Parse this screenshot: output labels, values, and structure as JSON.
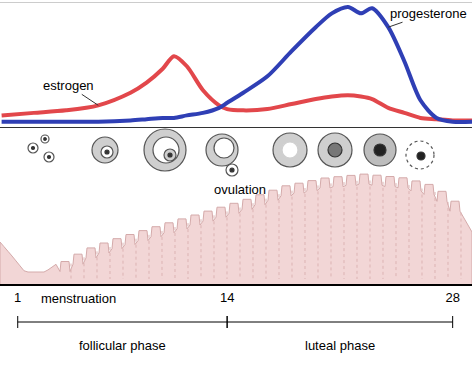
{
  "chart_data": {
    "type": "line",
    "x": [
      0,
      2,
      4,
      6,
      8,
      9,
      10,
      10.7,
      11.5,
      12.5,
      13.5,
      14,
      15,
      16.5,
      18,
      19.5,
      20.5,
      21.5,
      22.3,
      23,
      24,
      25,
      26,
      27,
      28,
      29.2
    ],
    "series": [
      {
        "name": "estrogen",
        "color": "#e2474b",
        "values": [
          10,
          12,
          14,
          18,
          28,
          36,
          47,
          57,
          49,
          30,
          18,
          15,
          14,
          15,
          19,
          23,
          25,
          26,
          25,
          23,
          16,
          12,
          8,
          7,
          6,
          6
        ]
      },
      {
        "name": "progesterone",
        "color": "#2f3fb5",
        "values": [
          5,
          5,
          5,
          5,
          6,
          7,
          8,
          8,
          10,
          12,
          16,
          20,
          28,
          41,
          61,
          80,
          91,
          96,
          91,
          95,
          80,
          53,
          22,
          8,
          5,
          5
        ]
      }
    ],
    "xlim": [
      -0.1,
      29.2
    ],
    "xticks": [
      1,
      14,
      28
    ],
    "ylim": [
      0,
      100
    ],
    "tick_labels": "x",
    "grid": false,
    "annotations": [
      "menstruation",
      "ovulation"
    ],
    "phases": [
      "follicular phase",
      "luteal phase"
    ]
  }
}
